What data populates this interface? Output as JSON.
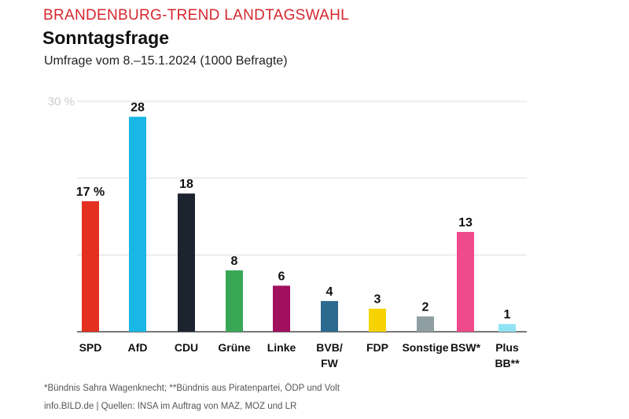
{
  "header": {
    "kicker": "BRANDENBURG-TREND LANDTAGSWAHL",
    "title": "Sonntagsfrage",
    "subtitle": "Umfrage vom 8.–15.1.2024 (1000 Befragte)"
  },
  "footer": {
    "note": "*Bündnis Sahra Wagenknecht; **Bündnis aus Piratenpartei, ÖDP und Volt",
    "source": "info.BILD.de | Quellen: INSA im Auftrag von MAZ, MOZ und LR"
  },
  "chart_data": {
    "type": "bar",
    "title": "Sonntagsfrage",
    "ylim": [
      0,
      30
    ],
    "yticks": [
      0,
      10,
      20,
      30
    ],
    "ytick_label_top": "30 %",
    "grid": true,
    "categories": [
      [
        "SPD"
      ],
      [
        "AfD"
      ],
      [
        "CDU"
      ],
      [
        "Grüne"
      ],
      [
        "Linke"
      ],
      [
        "BVB/",
        "FW"
      ],
      [
        "FDP"
      ],
      [
        "Sonstige"
      ],
      [
        "BSW*"
      ],
      [
        "Plus",
        "BB**"
      ]
    ],
    "values": [
      17,
      28,
      18,
      8,
      6,
      4,
      3,
      2,
      13,
      1
    ],
    "value_labels": [
      "17 %",
      "28",
      "18",
      "8",
      "6",
      "4",
      "3",
      "2",
      "13",
      "1"
    ],
    "colors": [
      "#e3301f",
      "#19b6e6",
      "#1c2430",
      "#3aa757",
      "#a0105f",
      "#2d6a8f",
      "#f5d200",
      "#8e9ea2",
      "#ef4a8b",
      "#8fe3f2"
    ],
    "category_bold": [
      true,
      true,
      true,
      true,
      true,
      true,
      true,
      false,
      true,
      true
    ]
  }
}
